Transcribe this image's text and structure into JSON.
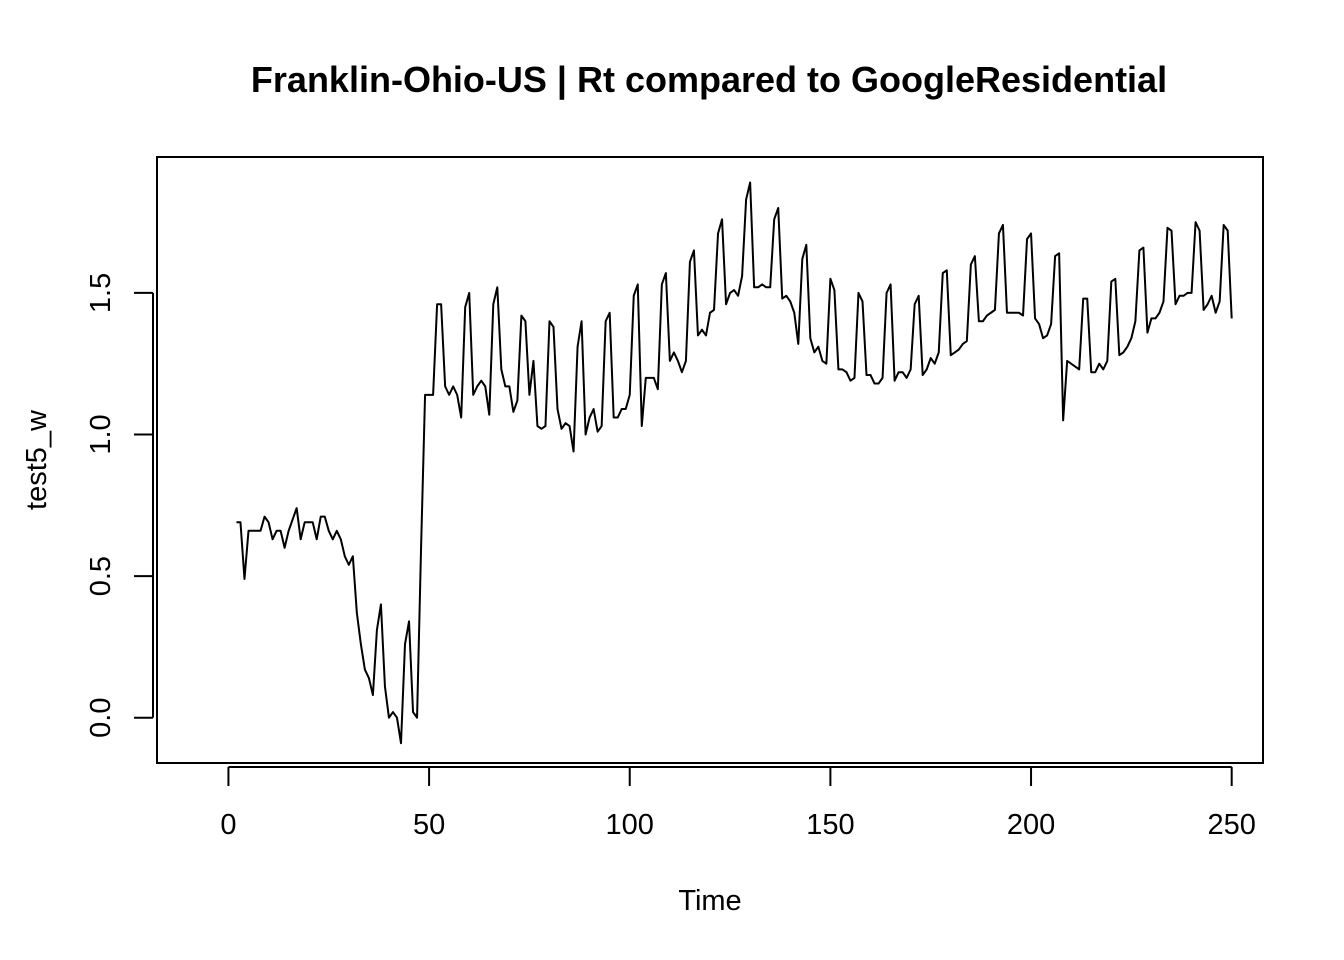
{
  "chart_data": {
    "type": "line",
    "title": "Franklin-Ohio-US | Rt compared to GoogleResidential",
    "xlabel": "Time",
    "ylabel": "test5_w",
    "xlim": [
      -17.8,
      257.8
    ],
    "ylim": [
      -0.16,
      1.98
    ],
    "grid": false,
    "x_ticks": [
      0,
      50,
      100,
      150,
      200,
      250
    ],
    "y_ticks": [
      0.0,
      0.5,
      1.0,
      1.5
    ],
    "x_tick_labels": [
      "0",
      "50",
      "100",
      "150",
      "200",
      "250"
    ],
    "y_tick_labels": [
      "0.0",
      "0.5",
      "1.0",
      "1.5"
    ],
    "color": "#000000",
    "x_start": 2,
    "values": [
      0.69,
      0.69,
      0.49,
      0.66,
      0.66,
      0.66,
      0.66,
      0.71,
      0.69,
      0.63,
      0.66,
      0.66,
      0.6,
      0.66,
      0.7,
      0.74,
      0.63,
      0.69,
      0.69,
      0.69,
      0.63,
      0.71,
      0.71,
      0.66,
      0.63,
      0.66,
      0.63,
      0.57,
      0.54,
      0.57,
      0.37,
      0.26,
      0.17,
      0.14,
      0.08,
      0.31,
      0.4,
      0.11,
      0.0,
      0.02,
      0.0,
      -0.09,
      0.26,
      0.34,
      0.02,
      0.0,
      0.6,
      1.14,
      1.14,
      1.14,
      1.46,
      1.46,
      1.17,
      1.14,
      1.17,
      1.14,
      1.06,
      1.45,
      1.5,
      1.14,
      1.17,
      1.19,
      1.17,
      1.07,
      1.46,
      1.52,
      1.23,
      1.17,
      1.17,
      1.08,
      1.12,
      1.42,
      1.4,
      1.14,
      1.26,
      1.03,
      1.02,
      1.03,
      1.4,
      1.38,
      1.09,
      1.02,
      1.04,
      1.03,
      0.94,
      1.31,
      1.4,
      1.0,
      1.06,
      1.09,
      1.01,
      1.03,
      1.4,
      1.43,
      1.06,
      1.06,
      1.09,
      1.09,
      1.14,
      1.49,
      1.53,
      1.03,
      1.2,
      1.2,
      1.2,
      1.16,
      1.53,
      1.57,
      1.26,
      1.29,
      1.26,
      1.22,
      1.26,
      1.61,
      1.65,
      1.35,
      1.37,
      1.35,
      1.43,
      1.44,
      1.71,
      1.76,
      1.46,
      1.5,
      1.51,
      1.49,
      1.56,
      1.83,
      1.89,
      1.52,
      1.52,
      1.53,
      1.52,
      1.52,
      1.76,
      1.8,
      1.48,
      1.49,
      1.47,
      1.43,
      1.32,
      1.62,
      1.67,
      1.34,
      1.29,
      1.31,
      1.26,
      1.25,
      1.55,
      1.51,
      1.23,
      1.23,
      1.22,
      1.19,
      1.2,
      1.5,
      1.47,
      1.21,
      1.21,
      1.18,
      1.18,
      1.2,
      1.5,
      1.53,
      1.19,
      1.22,
      1.22,
      1.2,
      1.23,
      1.46,
      1.49,
      1.21,
      1.23,
      1.27,
      1.25,
      1.29,
      1.57,
      1.58,
      1.28,
      1.29,
      1.3,
      1.32,
      1.33,
      1.6,
      1.63,
      1.4,
      1.4,
      1.42,
      1.43,
      1.44,
      1.71,
      1.74,
      1.43,
      1.43,
      1.43,
      1.43,
      1.42,
      1.69,
      1.71,
      1.41,
      1.39,
      1.34,
      1.35,
      1.39,
      1.63,
      1.64,
      1.05,
      1.26,
      1.25,
      1.24,
      1.23,
      1.48,
      1.48,
      1.22,
      1.22,
      1.25,
      1.23,
      1.26,
      1.54,
      1.55,
      1.28,
      1.29,
      1.31,
      1.34,
      1.4,
      1.65,
      1.66,
      1.36,
      1.41,
      1.41,
      1.43,
      1.47,
      1.73,
      1.72,
      1.46,
      1.49,
      1.49,
      1.5,
      1.5,
      1.75,
      1.72,
      1.44,
      1.46,
      1.49,
      1.43,
      1.47,
      1.74,
      1.72,
      1.41
    ]
  }
}
